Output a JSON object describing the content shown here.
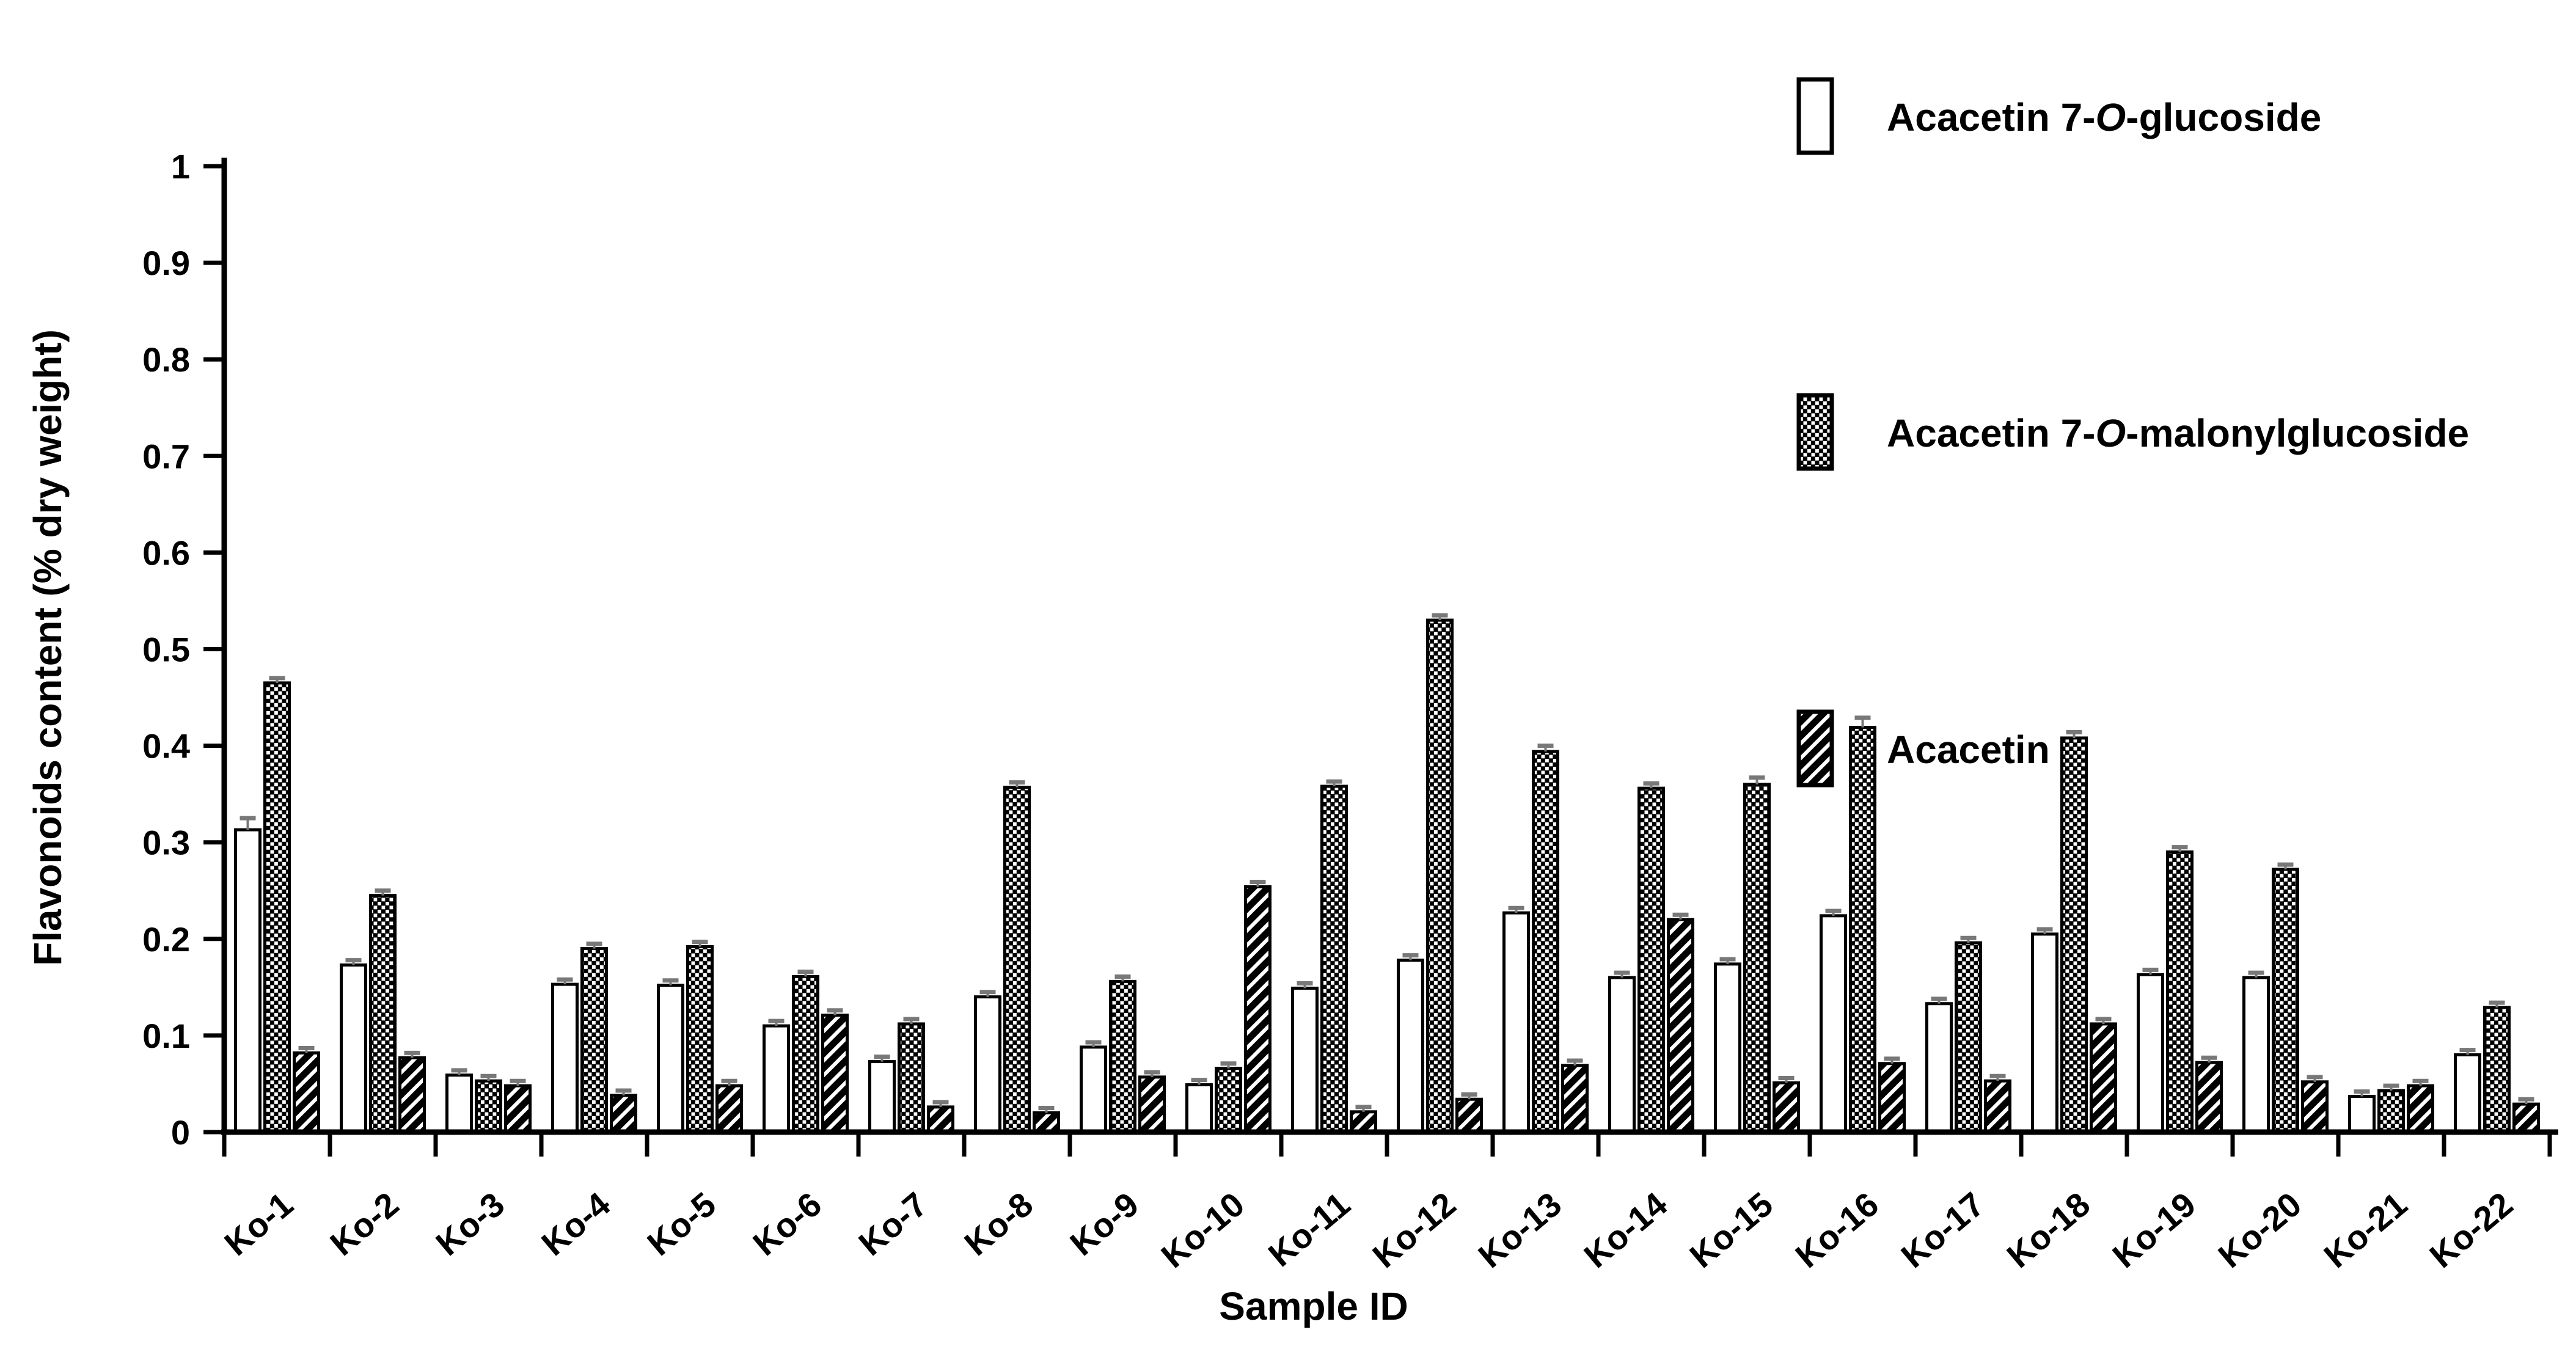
{
  "figure": {
    "background": "#ffffff",
    "ink": "#000000",
    "error_cap_color": "#787878"
  },
  "legend": {
    "position": "top-right",
    "items": [
      {
        "prefix": "Acacetin 7-",
        "italic": "O",
        "suffix": "-glucoside",
        "pattern": "plain-white"
      },
      {
        "prefix": "Acacetin 7-",
        "italic": "O",
        "suffix": "-malonylglucoside",
        "pattern": "checkerboard"
      },
      {
        "prefix": "Acacetin",
        "italic": "",
        "suffix": "",
        "pattern": "diagonal-stripes"
      }
    ]
  },
  "chart_data": {
    "type": "bar",
    "title": "",
    "xlabel": "Sample ID",
    "ylabel": "Flavonoids content (% dry weight)",
    "ylim": [
      0,
      1
    ],
    "ytick_step": 0.1,
    "ytick_labels": [
      "0",
      "0.1",
      "0.2",
      "0.3",
      "0.4",
      "0.5",
      "0.6",
      "0.7",
      "0.8",
      "0.9",
      "1"
    ],
    "grid": false,
    "legend_position": "top-right",
    "bar_patterns": [
      "plain-white",
      "checkerboard",
      "diagonal-stripes"
    ],
    "error_bar_caps": true,
    "error_caps": {
      "default": 0.005,
      "overrides": {
        "0_0": 0.012,
        "1_15": 0.01,
        "1_14": 0.007,
        "1_12": 0.006,
        "1_17": 0.006
      }
    },
    "categories": [
      "Ko-1",
      "Ko-2",
      "Ko-3",
      "Ko-4",
      "Ko-5",
      "Ko-6",
      "Ko-7",
      "Ko-8",
      "Ko-9",
      "Ko-10",
      "Ko-11",
      "Ko-12",
      "Ko-13",
      "Ko-14",
      "Ko-15",
      "Ko-16",
      "Ko-17",
      "Ko-18",
      "Ko-19",
      "Ko-20",
      "Ko-21",
      "Ko-22"
    ],
    "series": [
      {
        "name": "Acacetin 7-O-glucoside",
        "values": [
          0.313,
          0.173,
          0.059,
          0.153,
          0.152,
          0.11,
          0.073,
          0.14,
          0.088,
          0.049,
          0.149,
          0.178,
          0.227,
          0.16,
          0.174,
          0.224,
          0.133,
          0.205,
          0.163,
          0.16,
          0.037,
          0.08
        ]
      },
      {
        "name": "Acacetin 7-O-malonylglucoside",
        "values": [
          0.465,
          0.245,
          0.053,
          0.19,
          0.192,
          0.161,
          0.112,
          0.357,
          0.156,
          0.066,
          0.358,
          0.53,
          0.394,
          0.356,
          0.36,
          0.419,
          0.196,
          0.408,
          0.29,
          0.272,
          0.043,
          0.129
        ]
      },
      {
        "name": "Acacetin",
        "values": [
          0.082,
          0.077,
          0.048,
          0.038,
          0.048,
          0.121,
          0.026,
          0.02,
          0.057,
          0.254,
          0.021,
          0.034,
          0.069,
          0.22,
          0.051,
          0.071,
          0.053,
          0.112,
          0.072,
          0.052,
          0.048,
          0.029
        ]
      }
    ]
  }
}
